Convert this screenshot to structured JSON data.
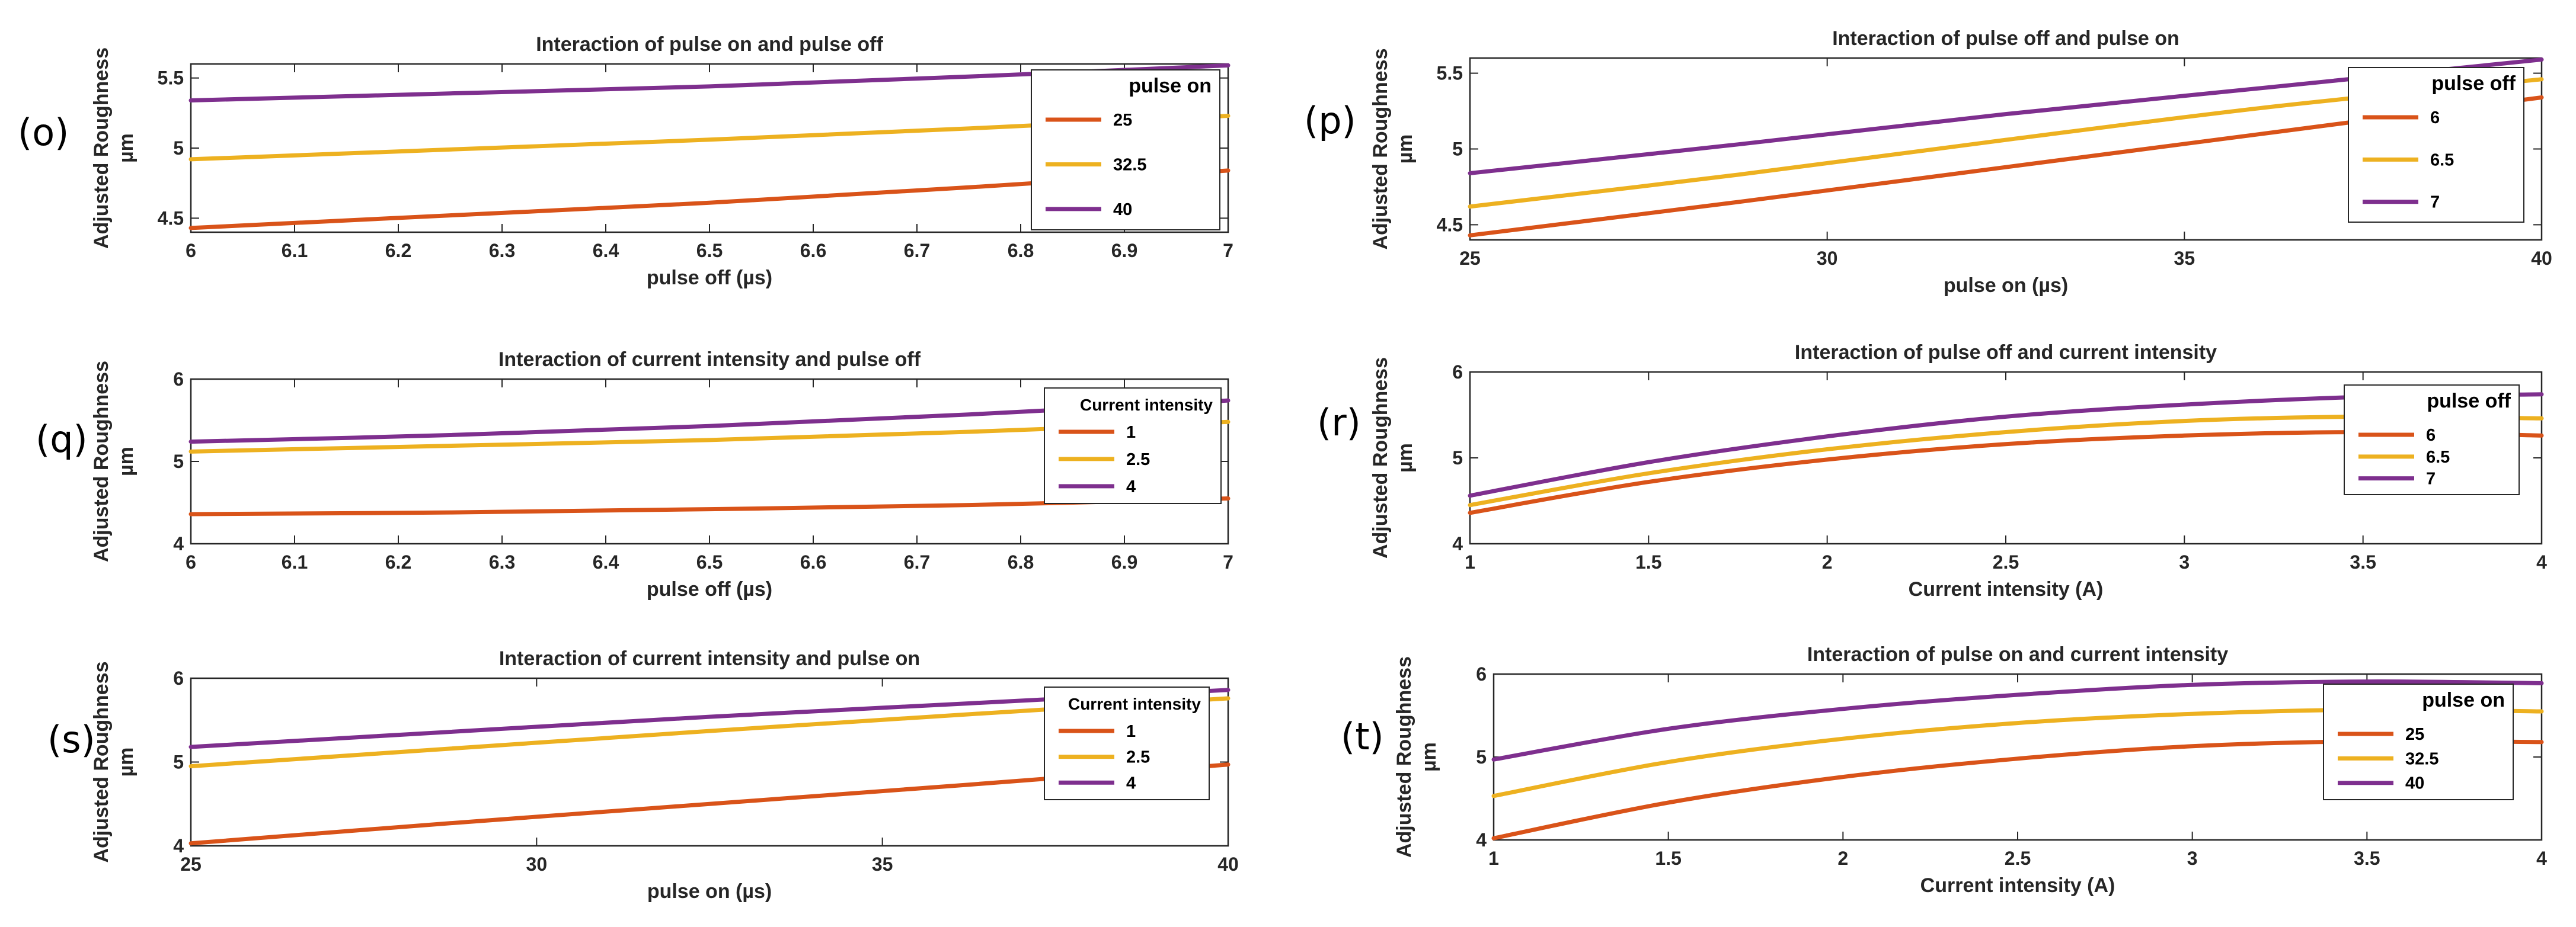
{
  "colors": {
    "s1": "#D95319",
    "s2": "#EDB120",
    "s3": "#7E2F8E",
    "axis": "#262626"
  },
  "chart_data": [
    {
      "panel": "(o)",
      "type": "line",
      "title": "Interaction of pulse on and pulse off",
      "xlabel": "pulse off (µs)",
      "ylabel": [
        "Adjusted Roughness",
        "µm"
      ],
      "xlim": [
        6,
        7
      ],
      "ylim": [
        4.4,
        5.6
      ],
      "xticks": [
        6,
        6.1,
        6.2,
        6.3,
        6.4,
        6.5,
        6.6,
        6.7,
        6.8,
        6.9,
        7
      ],
      "yticks": [
        4.5,
        5,
        5.5
      ],
      "legend": {
        "title": "pulse on",
        "position": "top-right"
      },
      "x": [
        6,
        6.25,
        6.5,
        6.75,
        7
      ],
      "series": [
        {
          "name": "25",
          "values": [
            4.43,
            4.52,
            4.61,
            4.72,
            4.84
          ]
        },
        {
          "name": "32.5",
          "values": [
            4.92,
            4.99,
            5.06,
            5.14,
            5.23
          ]
        },
        {
          "name": "40",
          "values": [
            5.34,
            5.39,
            5.44,
            5.51,
            5.59
          ]
        }
      ]
    },
    {
      "panel": "(p)",
      "type": "line",
      "title": "Interaction of pulse off and pulse on",
      "xlabel": "pulse on (µs)",
      "ylabel": [
        "Adjusted Roughness",
        "µm"
      ],
      "xlim": [
        25,
        40
      ],
      "ylim": [
        4.4,
        5.6
      ],
      "xticks": [
        25,
        30,
        35,
        40
      ],
      "yticks": [
        4.5,
        5,
        5.5
      ],
      "legend": {
        "title": "pulse off",
        "position": "top-right"
      },
      "x": [
        25,
        28.75,
        32.5,
        36.25,
        40
      ],
      "series": [
        {
          "name": "6",
          "values": [
            4.43,
            4.65,
            4.88,
            5.11,
            5.34
          ]
        },
        {
          "name": "6.5",
          "values": [
            4.62,
            4.83,
            5.06,
            5.28,
            5.46
          ]
        },
        {
          "name": "7",
          "values": [
            4.84,
            5.03,
            5.23,
            5.41,
            5.59
          ]
        }
      ]
    },
    {
      "panel": "(q)",
      "type": "line",
      "title": "Interaction of current intensity and pulse off",
      "xlabel": "pulse off (µs)",
      "ylabel": [
        "Adjusted Roughness",
        "µm"
      ],
      "xlim": [
        6,
        7
      ],
      "ylim": [
        4,
        6
      ],
      "xticks": [
        6,
        6.1,
        6.2,
        6.3,
        6.4,
        6.5,
        6.6,
        6.7,
        6.8,
        6.9,
        7
      ],
      "yticks": [
        4,
        5,
        6
      ],
      "legend": {
        "title": "Current intensity",
        "position": "top-right"
      },
      "x": [
        6,
        6.25,
        6.5,
        6.75,
        7
      ],
      "series": [
        {
          "name": "1",
          "values": [
            4.36,
            4.38,
            4.42,
            4.47,
            4.55
          ]
        },
        {
          "name": "2.5",
          "values": [
            5.12,
            5.19,
            5.26,
            5.36,
            5.48
          ]
        },
        {
          "name": "4",
          "values": [
            5.24,
            5.32,
            5.43,
            5.57,
            5.74
          ]
        }
      ]
    },
    {
      "panel": "(r)",
      "type": "line",
      "title": "Interaction of pulse off and current intensity",
      "xlabel": "Current intensity (A)",
      "ylabel": [
        "Adjusted Roughness",
        "µm"
      ],
      "xlim": [
        1,
        4
      ],
      "ylim": [
        4,
        6
      ],
      "xticks": [
        1,
        1.5,
        2,
        2.5,
        3,
        3.5,
        4
      ],
      "yticks": [
        4,
        5,
        6
      ],
      "legend": {
        "title": "pulse off",
        "position": "top-right"
      },
      "x": [
        1,
        1.5,
        2,
        2.5,
        3,
        3.5,
        4
      ],
      "series": [
        {
          "name": "6",
          "values": [
            4.36,
            4.72,
            4.98,
            5.16,
            5.26,
            5.3,
            5.26
          ]
        },
        {
          "name": "6.5",
          "values": [
            4.45,
            4.82,
            5.1,
            5.3,
            5.43,
            5.48,
            5.46
          ]
        },
        {
          "name": "7",
          "values": [
            4.56,
            4.95,
            5.25,
            5.48,
            5.62,
            5.71,
            5.74
          ]
        }
      ]
    },
    {
      "panel": "(s)",
      "type": "line",
      "title": "Interaction of current intensity and pulse on",
      "xlabel": "pulse on (µs)",
      "ylabel": [
        "Adjusted Roughness",
        "µm"
      ],
      "xlim": [
        25,
        40
      ],
      "ylim": [
        4,
        6
      ],
      "xticks": [
        25,
        30,
        35,
        40
      ],
      "yticks": [
        4,
        5,
        6
      ],
      "legend": {
        "title": "Current intensity",
        "position": "top-right"
      },
      "x": [
        25,
        28.75,
        32.5,
        36.25,
        40
      ],
      "series": [
        {
          "name": "1",
          "values": [
            4.03,
            4.27,
            4.5,
            4.73,
            4.97
          ]
        },
        {
          "name": "2.5",
          "values": [
            4.95,
            5.16,
            5.37,
            5.57,
            5.76
          ]
        },
        {
          "name": "4",
          "values": [
            5.18,
            5.36,
            5.54,
            5.7,
            5.86
          ]
        }
      ]
    },
    {
      "panel": "(t)",
      "type": "line",
      "title": "Interaction of pulse on and current intensity",
      "xlabel": "Current intensity (A)",
      "ylabel": [
        "Adjusted Roughness",
        "µm"
      ],
      "xlim": [
        1,
        4
      ],
      "ylim": [
        4,
        6
      ],
      "xticks": [
        1,
        1.5,
        2,
        2.5,
        3,
        3.5,
        4
      ],
      "yticks": [
        4,
        5,
        6
      ],
      "legend": {
        "title": "pulse on",
        "position": "top-right"
      },
      "x": [
        1,
        1.5,
        2,
        2.5,
        3,
        3.5,
        4
      ],
      "series": [
        {
          "name": "25",
          "values": [
            4.02,
            4.45,
            4.76,
            4.98,
            5.13,
            5.19,
            5.18
          ]
        },
        {
          "name": "32.5",
          "values": [
            4.53,
            4.94,
            5.22,
            5.41,
            5.52,
            5.57,
            5.55
          ]
        },
        {
          "name": "40",
          "values": [
            4.97,
            5.34,
            5.58,
            5.75,
            5.87,
            5.91,
            5.89
          ]
        }
      ]
    }
  ]
}
